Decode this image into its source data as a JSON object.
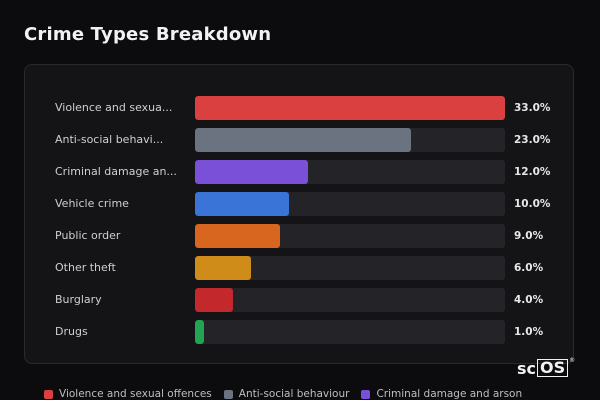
{
  "header": {
    "title": "Crime Types Breakdown"
  },
  "chart_data": {
    "type": "bar",
    "orientation": "horizontal",
    "title": "Crime Types Breakdown",
    "xlim": [
      0,
      33
    ],
    "categories": [
      "Violence and sexua...",
      "Anti-social behavi...",
      "Criminal damage an...",
      "Vehicle crime",
      "Public order",
      "Other theft",
      "Burglary",
      "Drugs"
    ],
    "values": [
      33.0,
      23.0,
      12.0,
      10.0,
      9.0,
      6.0,
      4.0,
      1.0
    ],
    "value_labels": [
      "33.0%",
      "23.0%",
      "12.0%",
      "10.0%",
      "9.0%",
      "6.0%",
      "4.0%",
      "1.0%"
    ],
    "colors": [
      "#d9403f",
      "#6b7280",
      "#7b50d8",
      "#3a74d6",
      "#d9661f",
      "#d08c18",
      "#c2282c",
      "#23a455"
    ],
    "legend": {
      "placement": "bottom",
      "entries": [
        {
          "label": "Violence and sexual offences",
          "color": "#d9403f"
        },
        {
          "label": "Anti-social behaviour",
          "color": "#6b7280"
        },
        {
          "label": "Criminal damage and arson",
          "color": "#7b50d8"
        }
      ]
    }
  },
  "watermark": {
    "prefix": "sc",
    "boxed": "OS",
    "mark": "®"
  }
}
